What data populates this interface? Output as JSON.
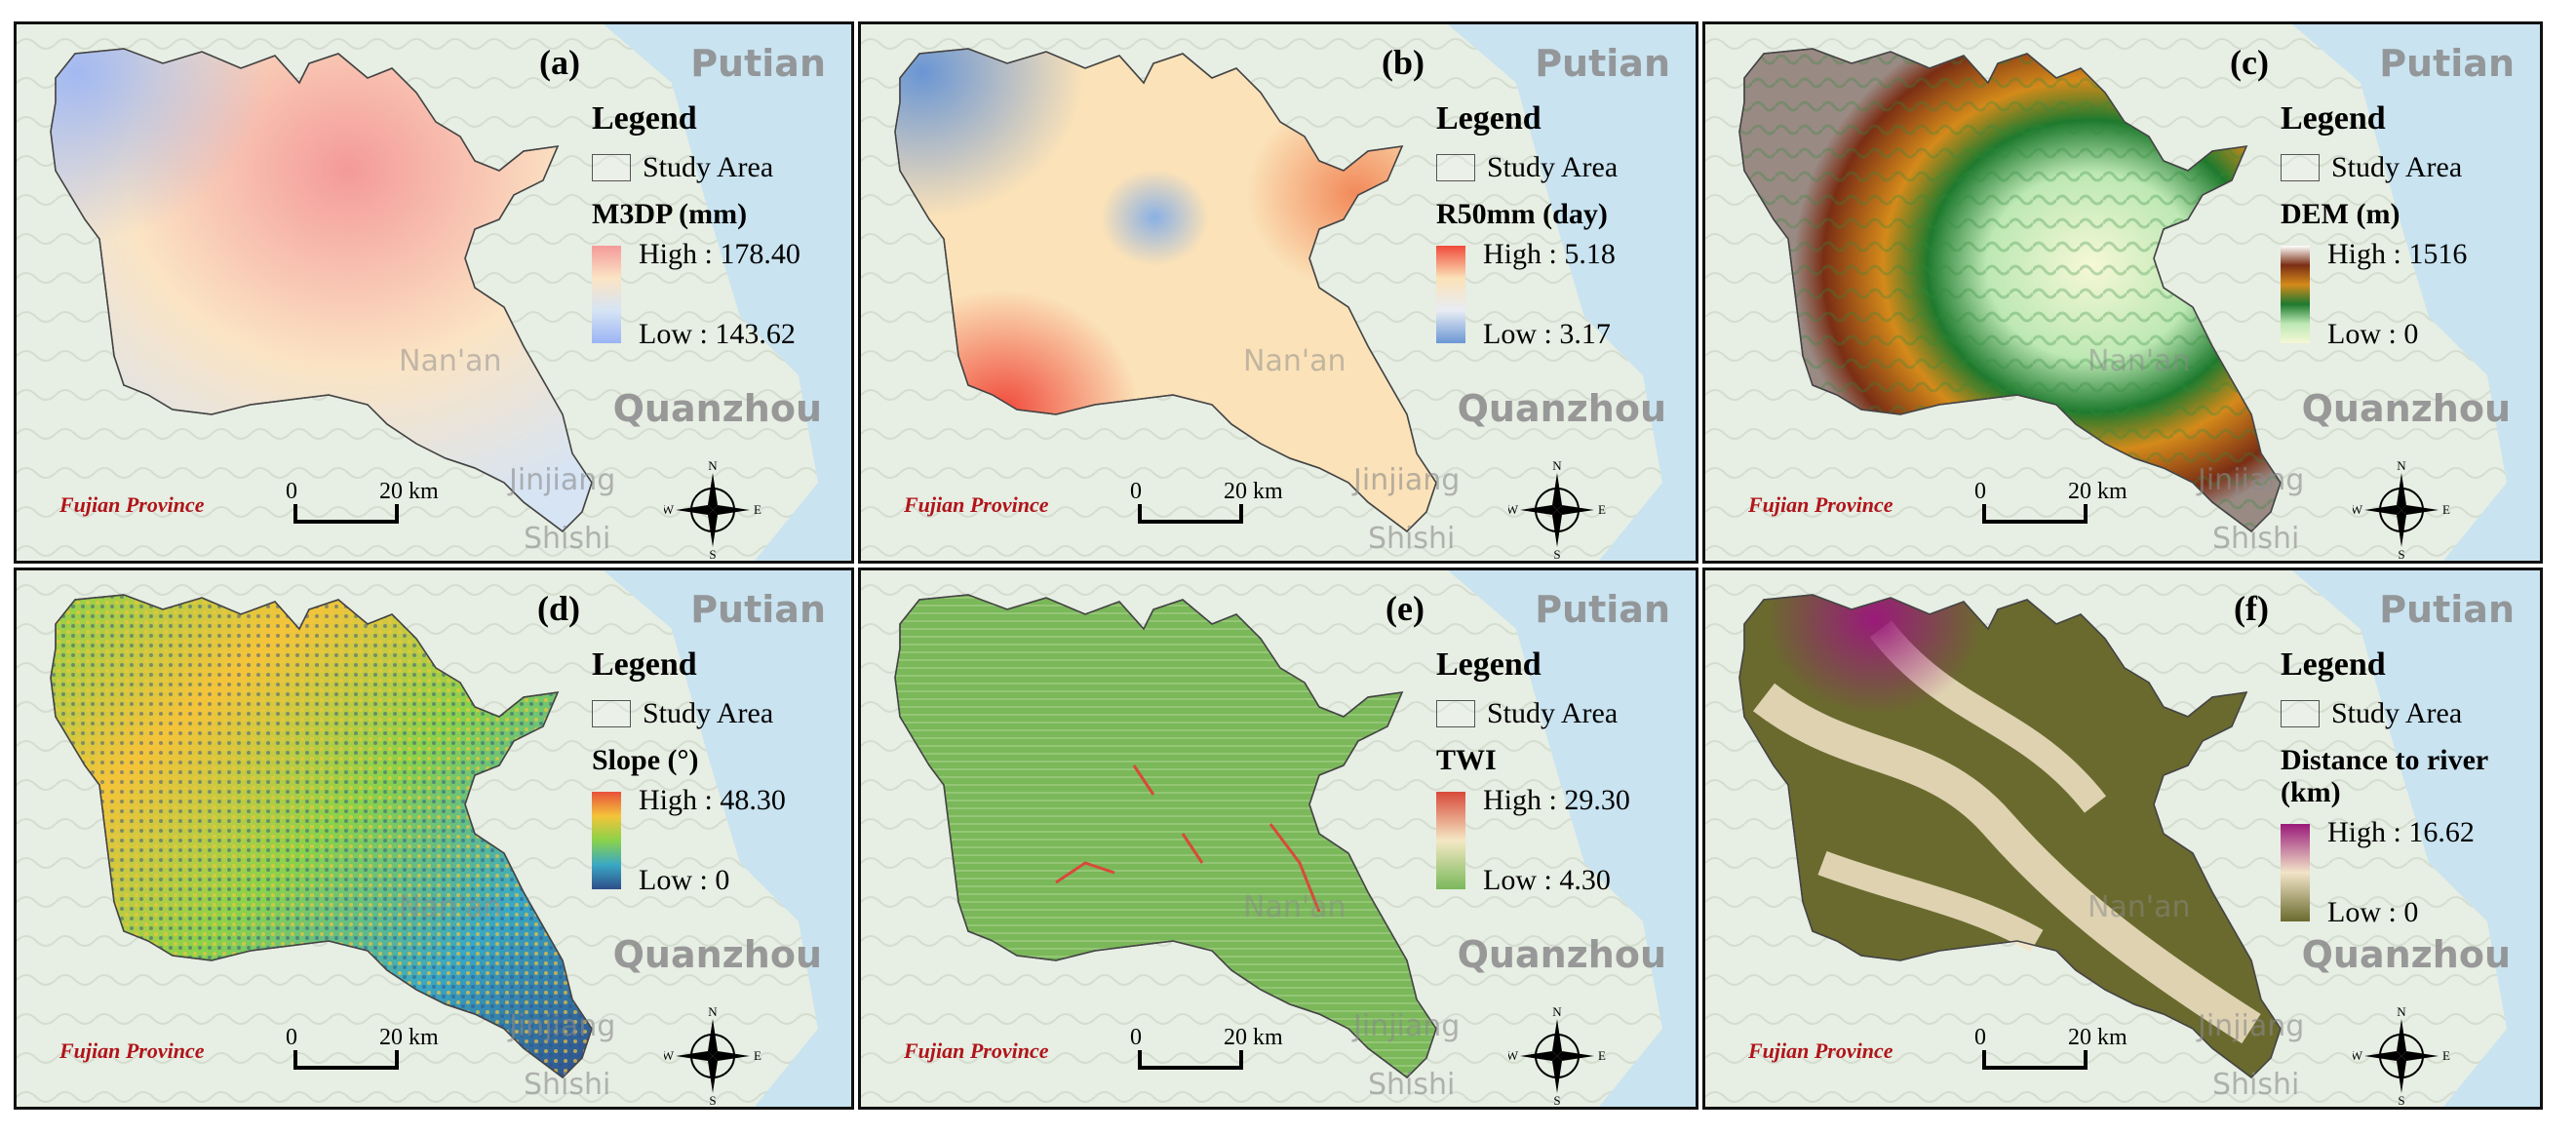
{
  "common": {
    "legend_title": "Legend",
    "study_area_label": "Study Area",
    "province_label": "Fujian Province",
    "scale_zero": "0",
    "scale_km": "20 km",
    "cities": {
      "putian": "Putian",
      "quanzhou": "Quanzhou",
      "nanan": "Nan'an",
      "jinjiang": "Jinjiang",
      "shishi": "Shishi"
    },
    "compass": {
      "n": "N",
      "s": "S",
      "e": "E",
      "w": "W"
    }
  },
  "panels": [
    {
      "label": "(a)",
      "field": "M3DP (mm)",
      "high": "High : 178.40",
      "low": "Low : 143.62",
      "ramp": [
        "#f49a9a",
        "#fbe4c4",
        "#d6e4f4",
        "#9ab4f4"
      ],
      "fill_style": "smooth-warm"
    },
    {
      "label": "(b)",
      "field": "R50mm (day)",
      "high": "High : 5.18",
      "low": "Low : 3.17",
      "ramp": [
        "#f04a3a",
        "#fbe2b8",
        "#e8ecf4",
        "#6a96d4"
      ],
      "fill_style": "smooth-cool"
    },
    {
      "label": "(c)",
      "field": "DEM (m)",
      "high": "High : 1516",
      "low": "Low : 0",
      "ramp": [
        "#ffffff",
        "#7a2e14",
        "#d48a1a",
        "#1e7a2e",
        "#bde8b4",
        "#f6f8d6"
      ],
      "fill_style": "dem"
    },
    {
      "label": "(d)",
      "field": "Slope (°)",
      "high": "High : 48.30",
      "low": "Low : 0",
      "ramp": [
        "#e8503a",
        "#f4c43a",
        "#8ad24a",
        "#3aa8c4",
        "#2e4e8a"
      ],
      "fill_style": "slope"
    },
    {
      "label": "(e)",
      "field": "TWI",
      "high": "High : 29.30",
      "low": "Low : 4.30",
      "ramp": [
        "#d84a3a",
        "#f4e8c4",
        "#7ab85a"
      ],
      "fill_style": "twi"
    },
    {
      "label": "(f)",
      "field": "Distance to river (km)",
      "high": "High : 16.62",
      "low": "Low : 0",
      "ramp": [
        "#9a1a7a",
        "#f2e4c8",
        "#6a6a2e"
      ],
      "fill_style": "distance"
    }
  ]
}
